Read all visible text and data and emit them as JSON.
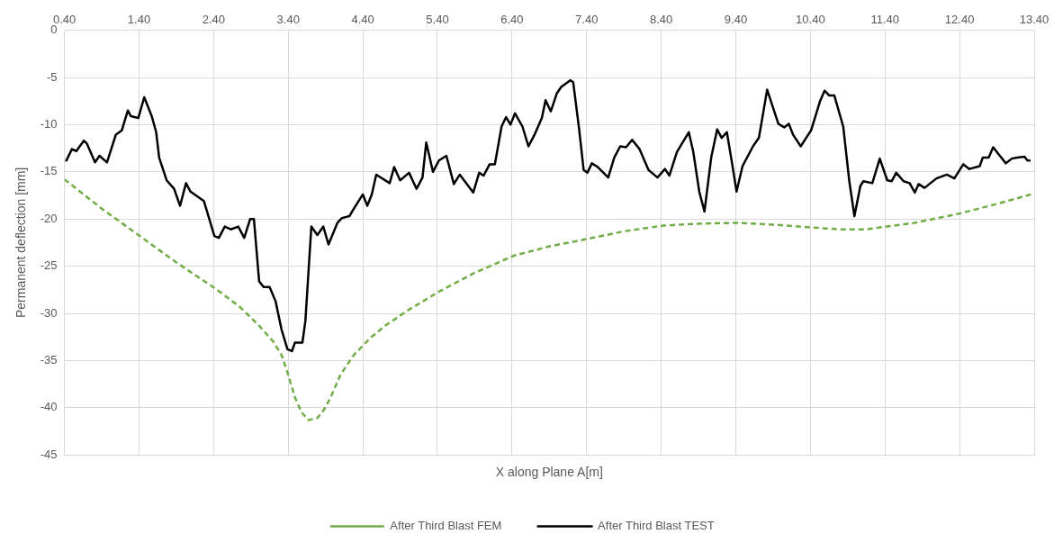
{
  "chart_data": {
    "type": "line",
    "xlabel": "X along Plane A[m]",
    "ylabel": "Permanent deflection [mm]",
    "xlim": [
      0.4,
      13.4
    ],
    "xticks": [
      {
        "value": 0.4,
        "label": "0.40"
      },
      {
        "value": 1.4,
        "label": "1.40"
      },
      {
        "value": 2.4,
        "label": "2.40"
      },
      {
        "value": 3.4,
        "label": "3.40"
      },
      {
        "value": 4.4,
        "label": "4.40"
      },
      {
        "value": 5.4,
        "label": "5.40"
      },
      {
        "value": 6.4,
        "label": "6.40"
      },
      {
        "value": 7.4,
        "label": "7.40"
      },
      {
        "value": 8.4,
        "label": "8.40"
      },
      {
        "value": 9.4,
        "label": "9.40"
      },
      {
        "value": 10.4,
        "label": "10.40"
      },
      {
        "value": 11.4,
        "label": "11.40"
      },
      {
        "value": 12.4,
        "label": "12.40"
      },
      {
        "value": 13.4,
        "label": "13.40"
      }
    ],
    "ylim": [
      -45,
      0
    ],
    "yticks": [
      -45,
      -40,
      -35,
      -30,
      -25,
      -20,
      -15,
      -10,
      -5,
      0
    ],
    "grid": true,
    "legend": "bottom",
    "marker": "none",
    "series": [
      {
        "name": "After Third Blast FEM",
        "color": "#70ad47",
        "line_style": "dashed",
        "x": [
          0.4,
          0.9,
          1.41,
          1.9,
          2.41,
          2.75,
          3.01,
          3.2,
          3.31,
          3.4,
          3.49,
          3.58,
          3.67,
          3.79,
          3.88,
          3.97,
          4.1,
          4.28,
          4.5,
          4.7,
          5.0,
          5.42,
          5.9,
          6.42,
          6.9,
          7.42,
          7.9,
          8.43,
          8.9,
          9.43,
          9.9,
          10.43,
          10.8,
          11.14,
          11.8,
          12.41,
          12.9,
          13.4
        ],
        "values": [
          -15.8,
          -18.9,
          -21.8,
          -24.6,
          -27.3,
          -29.3,
          -31.3,
          -33.0,
          -34.4,
          -36.5,
          -38.9,
          -40.5,
          -41.3,
          -41.1,
          -40.2,
          -38.9,
          -36.5,
          -34.4,
          -32.6,
          -31.3,
          -29.7,
          -27.7,
          -25.7,
          -23.9,
          -22.9,
          -22.1,
          -21.3,
          -20.7,
          -20.5,
          -20.4,
          -20.6,
          -20.9,
          -21.1,
          -21.1,
          -20.4,
          -19.4,
          -18.4,
          -17.3
        ]
      },
      {
        "name": "After Third Blast TEST",
        "color": "#000000",
        "line_style": "solid",
        "x": [
          0.42,
          0.5,
          0.56,
          0.66,
          0.7,
          0.81,
          0.87,
          0.97,
          1.09,
          1.17,
          1.25,
          1.29,
          1.39,
          1.47,
          1.57,
          1.63,
          1.67,
          1.77,
          1.87,
          1.95,
          2.03,
          2.09,
          2.27,
          2.41,
          2.47,
          2.55,
          2.63,
          2.73,
          2.81,
          2.89,
          2.94,
          3.01,
          3.07,
          3.15,
          3.23,
          3.31,
          3.39,
          3.45,
          3.49,
          3.59,
          3.63,
          3.71,
          3.79,
          3.87,
          3.94,
          4.06,
          4.12,
          4.22,
          4.28,
          4.4,
          4.46,
          4.52,
          4.58,
          4.76,
          4.82,
          4.9,
          5.02,
          5.12,
          5.2,
          5.25,
          5.34,
          5.42,
          5.52,
          5.62,
          5.7,
          5.88,
          5.96,
          6.02,
          6.1,
          6.17,
          6.26,
          6.32,
          6.38,
          6.44,
          6.54,
          6.62,
          6.7,
          6.8,
          6.85,
          6.92,
          7.0,
          7.06,
          7.18,
          7.22,
          7.3,
          7.36,
          7.41,
          7.47,
          7.55,
          7.69,
          7.77,
          7.85,
          7.93,
          8.01,
          8.11,
          8.23,
          8.35,
          8.45,
          8.51,
          8.61,
          8.77,
          8.83,
          8.91,
          8.98,
          9.07,
          9.15,
          9.21,
          9.28,
          9.35,
          9.41,
          9.49,
          9.63,
          9.71,
          9.82,
          9.97,
          10.05,
          10.11,
          10.17,
          10.27,
          10.41,
          10.53,
          10.59,
          10.65,
          10.72,
          10.84,
          10.92,
          10.99,
          11.07,
          11.11,
          11.23,
          11.33,
          11.43,
          11.49,
          11.55,
          11.65,
          11.73,
          11.8,
          11.85,
          11.93,
          12.09,
          12.23,
          12.33,
          12.45,
          12.53,
          12.67,
          12.71,
          12.79,
          12.85,
          12.93,
          13.02,
          13.1,
          13.17,
          13.27,
          13.31,
          13.35
        ],
        "values": [
          -13.9,
          -12.6,
          -12.8,
          -11.7,
          -12.0,
          -14.0,
          -13.3,
          -14.0,
          -11.05,
          -10.6,
          -8.5,
          -9.1,
          -9.3,
          -7.1,
          -9.1,
          -10.8,
          -13.5,
          -15.9,
          -16.8,
          -18.6,
          -16.2,
          -17.1,
          -18.1,
          -21.8,
          -22.0,
          -20.8,
          -21.1,
          -20.8,
          -22.0,
          -20.0,
          -20.0,
          -26.6,
          -27.2,
          -27.2,
          -28.7,
          -31.7,
          -33.8,
          -34.0,
          -33.1,
          -33.1,
          -30.8,
          -20.8,
          -21.7,
          -20.8,
          -22.7,
          -20.4,
          -19.9,
          -19.7,
          -18.9,
          -17.4,
          -18.6,
          -17.4,
          -15.3,
          -16.2,
          -14.5,
          -15.9,
          -15.1,
          -16.8,
          -15.6,
          -11.9,
          -15.0,
          -13.8,
          -13.3,
          -16.3,
          -15.3,
          -17.2,
          -15.1,
          -15.4,
          -14.2,
          -14.2,
          -10.2,
          -9.2,
          -10.0,
          -8.8,
          -10.2,
          -12.3,
          -11.1,
          -9.3,
          -7.4,
          -8.6,
          -6.7,
          -6.0,
          -5.3,
          -5.5,
          -10.5,
          -14.8,
          -15.1,
          -14.1,
          -14.5,
          -15.6,
          -13.5,
          -12.3,
          -12.4,
          -11.6,
          -12.6,
          -14.8,
          -15.6,
          -14.7,
          -15.4,
          -12.9,
          -10.8,
          -12.9,
          -17.1,
          -19.2,
          -13.5,
          -10.5,
          -11.4,
          -10.8,
          -14.1,
          -17.1,
          -14.4,
          -12.3,
          -11.4,
          -6.3,
          -9.9,
          -10.3,
          -9.9,
          -11.1,
          -12.3,
          -10.6,
          -7.5,
          -6.4,
          -6.9,
          -6.9,
          -10.2,
          -15.9,
          -19.7,
          -16.5,
          -16.0,
          -16.2,
          -13.6,
          -15.9,
          -16.0,
          -15.1,
          -16.0,
          -16.2,
          -17.2,
          -16.3,
          -16.7,
          -15.7,
          -15.3,
          -15.7,
          -14.2,
          -14.7,
          -14.4,
          -13.5,
          -13.5,
          -12.4,
          -13.2,
          -14.1,
          -13.6,
          -13.5,
          -13.4,
          -13.8,
          -13.8
        ]
      }
    ]
  }
}
